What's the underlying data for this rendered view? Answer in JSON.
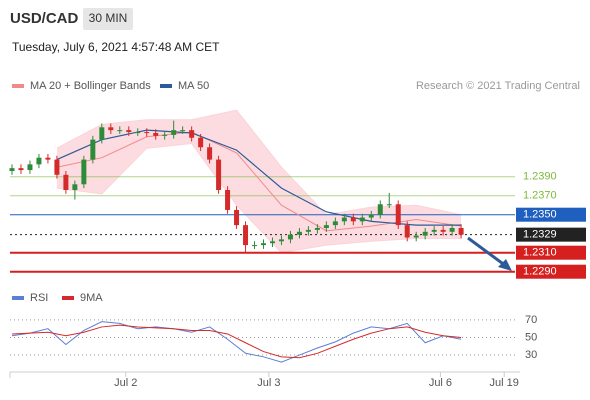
{
  "header": {
    "symbol": "USD/CAD",
    "timeframe": "30 MIN",
    "timestamp": "Tuesday, July 6, 2021 4:57:48 AM CET",
    "source": "Research © 2021 Trading Central"
  },
  "chart_data": [
    {
      "type": "candlestick",
      "candles": {
        "open": [
          1.2396,
          1.2399,
          1.2397,
          1.2403,
          1.241,
          1.2408,
          1.2392,
          1.2376,
          1.2382,
          1.2408,
          1.2429,
          1.2442,
          1.2439,
          1.2439,
          1.2437,
          1.2437,
          1.2436,
          1.2433,
          1.2434,
          1.2439,
          1.2439,
          1.2431,
          1.2421,
          1.2408,
          1.2376,
          1.2355,
          1.2339,
          1.2318,
          1.2318,
          1.232,
          1.2322,
          1.2324,
          1.2329,
          1.2332,
          1.2334,
          1.2336,
          1.2339,
          1.2343,
          1.2347,
          1.2343,
          1.2347,
          1.235,
          1.2361,
          1.2361,
          1.2339,
          1.2326,
          1.2328,
          1.2332,
          1.2334,
          1.2332,
          1.2336
        ],
        "high": [
          1.2403,
          1.2403,
          1.2407,
          1.2414,
          1.2414,
          1.2412,
          1.2396,
          1.2386,
          1.2412,
          1.2433,
          1.2446,
          1.2446,
          1.2443,
          1.2443,
          1.2441,
          1.2441,
          1.244,
          1.2438,
          1.2449,
          1.2443,
          1.2443,
          1.2435,
          1.2425,
          1.2412,
          1.238,
          1.2359,
          1.2343,
          1.2322,
          1.2324,
          1.2326,
          1.2328,
          1.2333,
          1.2336,
          1.2338,
          1.234,
          1.2343,
          1.2347,
          1.2351,
          1.2351,
          1.2351,
          1.2354,
          1.2365,
          1.2373,
          1.2365,
          1.2343,
          1.2332,
          1.2336,
          1.2338,
          1.2338,
          1.234,
          1.234
        ],
        "low": [
          1.2392,
          1.2393,
          1.2393,
          1.2399,
          1.2404,
          1.2388,
          1.2372,
          1.2366,
          1.2378,
          1.2404,
          1.2425,
          1.2435,
          1.2435,
          1.2433,
          1.2433,
          1.2432,
          1.2429,
          1.2429,
          1.243,
          1.2435,
          1.2427,
          1.2417,
          1.2404,
          1.2372,
          1.2351,
          1.2335,
          1.231,
          1.2314,
          1.2314,
          1.2316,
          1.2318,
          1.232,
          1.2325,
          1.2328,
          1.233,
          1.2332,
          1.2335,
          1.2339,
          1.2339,
          1.2339,
          1.2343,
          1.2346,
          1.2357,
          1.2335,
          1.2322,
          1.2322,
          1.2324,
          1.2328,
          1.2328,
          1.2328,
          1.2325
        ],
        "close": [
          1.2399,
          1.2397,
          1.2403,
          1.241,
          1.2408,
          1.2392,
          1.2376,
          1.2382,
          1.2408,
          1.2429,
          1.2442,
          1.2439,
          1.2439,
          1.2437,
          1.2437,
          1.2436,
          1.2433,
          1.2434,
          1.2439,
          1.2439,
          1.2431,
          1.2421,
          1.2408,
          1.2376,
          1.2355,
          1.2339,
          1.2318,
          1.2318,
          1.232,
          1.2322,
          1.2324,
          1.2329,
          1.2332,
          1.2334,
          1.2336,
          1.2339,
          1.2343,
          1.2347,
          1.2343,
          1.2347,
          1.235,
          1.2361,
          1.2361,
          1.2339,
          1.2326,
          1.2328,
          1.2332,
          1.2334,
          1.2332,
          1.2336,
          1.2329
        ],
        "up_color": "#2e8b3a",
        "down_color": "#d42a2a"
      },
      "series": [
        {
          "name": "MA 20 + Bollinger Bands",
          "color": "#f08a8a",
          "band_color": "#fbd3d8",
          "x": [
            5,
            10,
            15,
            20,
            25,
            30,
            35,
            40,
            45,
            50
          ],
          "values": [
            1.24,
            1.241,
            1.2432,
            1.2437,
            1.2415,
            1.236,
            1.2333,
            1.2338,
            1.2345,
            1.2338
          ],
          "upper": [
            1.242,
            1.2445,
            1.245,
            1.245,
            1.246,
            1.24,
            1.235,
            1.2358,
            1.236,
            1.235
          ],
          "lower": [
            1.2378,
            1.2372,
            1.242,
            1.2425,
            1.236,
            1.231,
            1.2318,
            1.2322,
            1.2325,
            1.2325
          ]
        },
        {
          "name": "MA 50",
          "color": "#2d5b9a",
          "x": [
            5,
            10,
            15,
            20,
            25,
            30,
            35,
            40,
            45,
            50
          ],
          "values": [
            1.2408,
            1.2429,
            1.2439,
            1.2436,
            1.2418,
            1.2378,
            1.2353,
            1.2343,
            1.2339,
            1.2339
          ]
        }
      ],
      "levels": [
        {
          "value": 1.239,
          "label": "1.2390",
          "color": "#7cbb3a",
          "box": false
        },
        {
          "value": 1.237,
          "label": "1.2370",
          "color": "#7cbb3a",
          "box": false
        },
        {
          "value": 1.235,
          "label": "1.2350",
          "color": "#1f5fbf",
          "box": true
        },
        {
          "value": 1.2329,
          "label": "1.2329",
          "color": "#222222",
          "box": true,
          "dashed": true
        },
        {
          "value": 1.231,
          "label": "1.2310",
          "color": "#d61f1f",
          "box": true
        },
        {
          "value": 1.229,
          "label": "1.2290",
          "color": "#d61f1f",
          "box": true
        }
      ],
      "xlim": [
        0,
        56
      ],
      "ylim": [
        1.2276,
        1.2476
      ]
    },
    {
      "type": "line",
      "x": [
        0,
        2,
        4,
        6,
        8,
        10,
        12,
        14,
        16,
        18,
        20,
        22,
        24,
        26,
        28,
        30,
        32,
        34,
        36,
        38,
        40,
        42,
        44,
        46,
        48,
        50
      ],
      "series": [
        {
          "name": "RSI",
          "color": "#5b7fd6",
          "values": [
            52,
            55,
            60,
            42,
            58,
            68,
            66,
            60,
            62,
            60,
            56,
            62,
            48,
            32,
            28,
            22,
            30,
            38,
            45,
            55,
            62,
            60,
            66,
            44,
            52,
            48
          ]
        },
        {
          "name": "9MA",
          "color": "#d62a2a",
          "values": [
            54,
            55,
            56,
            52,
            56,
            62,
            64,
            62,
            61,
            60,
            58,
            58,
            54,
            44,
            34,
            28,
            27,
            32,
            40,
            48,
            55,
            60,
            62,
            56,
            52,
            50
          ]
        }
      ],
      "xlim": [
        0,
        56
      ],
      "ylim": [
        13,
        79
      ],
      "yticks": [
        70,
        50,
        30
      ],
      "xticks": [
        {
          "value": 12.67,
          "label": "Jul 2"
        },
        {
          "value": 28.6,
          "label": "Jul 3"
        },
        {
          "value": 47.7,
          "label": "Jul 6"
        },
        {
          "value": 54.8,
          "label": "Jul 19"
        }
      ]
    }
  ]
}
